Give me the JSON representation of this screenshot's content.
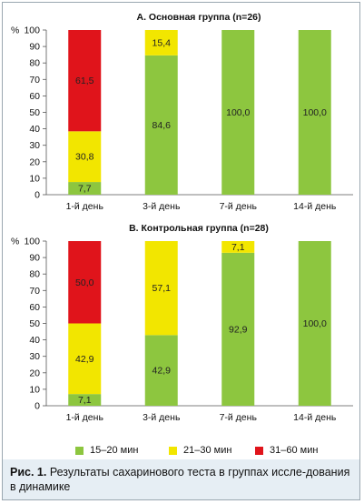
{
  "chart_data": [
    {
      "type": "bar",
      "stacked": true,
      "title": "А. Основная группа (n=26)",
      "ylabel": "%",
      "ylim": [
        0,
        100
      ],
      "yticks": [
        0,
        10,
        20,
        30,
        40,
        50,
        60,
        70,
        80,
        90,
        100
      ],
      "categories": [
        "1-й день",
        "3-й день",
        "7-й день",
        "14-й день"
      ],
      "series": [
        {
          "name": "15–20 мин",
          "color": "#8dc63f",
          "values": [
            7.7,
            84.6,
            100.0,
            100.0
          ],
          "labels": [
            "7,7",
            "84,6",
            "100,0",
            "100,0"
          ]
        },
        {
          "name": "21–30 мин",
          "color": "#f2e600",
          "values": [
            30.8,
            15.4,
            0,
            0
          ],
          "labels": [
            "30,8",
            "15,4",
            "",
            ""
          ]
        },
        {
          "name": "31–60 мин",
          "color": "#e0141b",
          "values": [
            61.5,
            0,
            0,
            0
          ],
          "labels": [
            "61,5",
            "",
            "",
            ""
          ]
        }
      ]
    },
    {
      "type": "bar",
      "stacked": true,
      "title": "B. Контрольная группа (n=28)",
      "ylabel": "%",
      "ylim": [
        0,
        100
      ],
      "yticks": [
        0,
        10,
        20,
        30,
        40,
        50,
        60,
        70,
        80,
        90,
        100
      ],
      "categories": [
        "1-й день",
        "3-й день",
        "7-й день",
        "14-й день"
      ],
      "series": [
        {
          "name": "15–20 мин",
          "color": "#8dc63f",
          "values": [
            7.1,
            42.9,
            92.9,
            100.0
          ],
          "labels": [
            "7,1",
            "42,9",
            "92,9",
            "100,0"
          ]
        },
        {
          "name": "21–30 мин",
          "color": "#f2e600",
          "values": [
            42.9,
            57.1,
            7.1,
            0
          ],
          "labels": [
            "42,9",
            "57,1",
            "7,1",
            ""
          ]
        },
        {
          "name": "31–60 мин",
          "color": "#e0141b",
          "values": [
            50.0,
            0,
            0,
            0
          ],
          "labels": [
            "50,0",
            "",
            "",
            ""
          ]
        }
      ]
    }
  ],
  "legend": [
    {
      "label": "15–20 мин",
      "color": "#8dc63f"
    },
    {
      "label": "21–30 мин",
      "color": "#f2e600"
    },
    {
      "label": "31–60 мин",
      "color": "#e0141b"
    }
  ],
  "caption": {
    "prefix": "Рис. 1.",
    "text": " Результаты сахаринового теста в группах иссле-дования в динамике"
  }
}
